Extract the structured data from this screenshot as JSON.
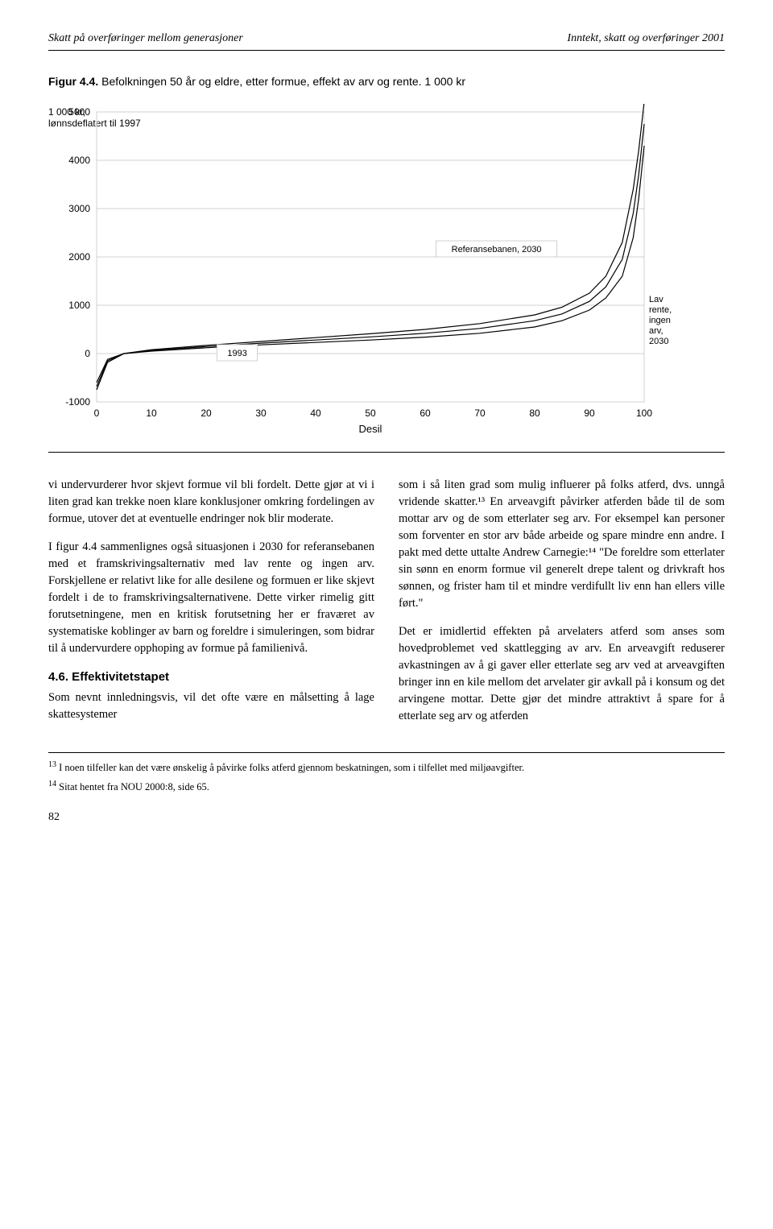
{
  "header": {
    "left": "Skatt på overføringer mellom generasjoner",
    "right": "Inntekt, skatt og overføringer 2001"
  },
  "figure": {
    "caption_label": "Figur 4.4.",
    "caption_text": "Befolkningen 50 år og eldre, etter formue, effekt av arv og rente. 1 000 kr",
    "y_axis_label_line1": "1 000 kr,",
    "y_axis_label_line2": "lønnsdeflatert til 1997",
    "x_axis_label": "Desil",
    "yticks": [
      -1000,
      0,
      1000,
      2000,
      3000,
      4000,
      5000
    ],
    "xticks": [
      0,
      10,
      20,
      30,
      40,
      50,
      60,
      70,
      80,
      90,
      100
    ],
    "legend_ref": "Referansebanen, 2030",
    "legend_1993": "1993",
    "legend_lav": "Lav rente, ingen arv, 2030",
    "ylim": [
      -1000,
      5000
    ],
    "xlim": [
      0,
      100
    ],
    "grid_color": "#d0d0d0",
    "line_color": "#000000",
    "background": "#ffffff",
    "series_1993": [
      {
        "x": 0,
        "y": -600
      },
      {
        "x": 2,
        "y": -120
      },
      {
        "x": 5,
        "y": 0
      },
      {
        "x": 10,
        "y": 50
      },
      {
        "x": 20,
        "y": 120
      },
      {
        "x": 30,
        "y": 180
      },
      {
        "x": 40,
        "y": 230
      },
      {
        "x": 50,
        "y": 280
      },
      {
        "x": 60,
        "y": 340
      },
      {
        "x": 70,
        "y": 420
      },
      {
        "x": 80,
        "y": 550
      },
      {
        "x": 85,
        "y": 680
      },
      {
        "x": 90,
        "y": 900
      },
      {
        "x": 93,
        "y": 1150
      },
      {
        "x": 96,
        "y": 1600
      },
      {
        "x": 98,
        "y": 2400
      },
      {
        "x": 99,
        "y": 3200
      },
      {
        "x": 100,
        "y": 4300
      }
    ],
    "series_ref2030": [
      {
        "x": 0,
        "y": -750
      },
      {
        "x": 2,
        "y": -180
      },
      {
        "x": 5,
        "y": 0
      },
      {
        "x": 10,
        "y": 80
      },
      {
        "x": 20,
        "y": 170
      },
      {
        "x": 30,
        "y": 250
      },
      {
        "x": 40,
        "y": 330
      },
      {
        "x": 50,
        "y": 410
      },
      {
        "x": 60,
        "y": 500
      },
      {
        "x": 70,
        "y": 620
      },
      {
        "x": 80,
        "y": 800
      },
      {
        "x": 85,
        "y": 960
      },
      {
        "x": 90,
        "y": 1250
      },
      {
        "x": 93,
        "y": 1600
      },
      {
        "x": 96,
        "y": 2300
      },
      {
        "x": 98,
        "y": 3400
      },
      {
        "x": 99,
        "y": 4200
      },
      {
        "x": 100,
        "y": 5200
      }
    ],
    "series_lav2030": [
      {
        "x": 0,
        "y": -680
      },
      {
        "x": 2,
        "y": -150
      },
      {
        "x": 5,
        "y": 0
      },
      {
        "x": 10,
        "y": 65
      },
      {
        "x": 20,
        "y": 145
      },
      {
        "x": 30,
        "y": 215
      },
      {
        "x": 40,
        "y": 280
      },
      {
        "x": 50,
        "y": 345
      },
      {
        "x": 60,
        "y": 420
      },
      {
        "x": 70,
        "y": 520
      },
      {
        "x": 80,
        "y": 680
      },
      {
        "x": 85,
        "y": 820
      },
      {
        "x": 90,
        "y": 1080
      },
      {
        "x": 93,
        "y": 1380
      },
      {
        "x": 96,
        "y": 1950
      },
      {
        "x": 98,
        "y": 2900
      },
      {
        "x": 99,
        "y": 3700
      },
      {
        "x": 100,
        "y": 4750
      }
    ]
  },
  "body": {
    "left_p1": "vi undervurderer hvor skjevt formue vil bli fordelt. Dette gjør at vi i liten grad kan trekke noen klare konklusjoner omkring fordelingen av formue, utover det at eventuelle endringer nok blir moderate.",
    "left_p2": "I figur 4.4 sammenlignes også situasjonen i 2030 for referansebanen med et framskrivingsalternativ med lav rente og ingen arv. Forskjellene er relativt like for alle desilene og formuen er like skjevt fordelt i de to framskrivingsalternativene. Dette virker rimelig gitt forutsetningene, men en kritisk forutsetning her er fraværet av systematiske koblinger av barn og foreldre i simuleringen, som bidrar til å undervurdere opphoping av formue på familienivå.",
    "section_heading": "4.6. Effektivitetstapet",
    "left_p3": "Som nevnt innledningsvis, vil det ofte være en målsetting å lage skattesystemer",
    "right_p1": "som i så liten grad som mulig influerer på folks atferd, dvs. unngå vridende skatter.¹³ En arveavgift påvirker atferden både til de som mottar arv og de som etterlater seg arv. For eksempel kan personer som forventer en stor arv både arbeide og spare mindre enn andre. I pakt med dette uttalte Andrew Carnegie:¹⁴ \"De foreldre som etterlater sin sønn en enorm formue vil generelt drepe talent og drivkraft hos sønnen, og frister ham til et mindre verdifullt liv enn han ellers ville ført.\"",
    "right_p2": "Det er imidlertid effekten på arvelaters atferd som anses som hovedproblemet ved skattlegging av arv. En arveavgift reduserer avkastningen av å gi gaver eller etterlate seg arv ved at arveavgiften bringer inn en kile mellom det arvelater gir avkall på i konsum og det arvingene mottar. Dette gjør det mindre attraktivt å spare for å etterlate seg arv og atferden"
  },
  "footnotes": {
    "fn13": "I noen tilfeller kan det være ønskelig å påvirke folks atferd gjennom beskatningen, som i tilfellet med miljøavgifter.",
    "fn14": "Sitat hentet fra NOU 2000:8, side 65."
  },
  "page_number": "82"
}
